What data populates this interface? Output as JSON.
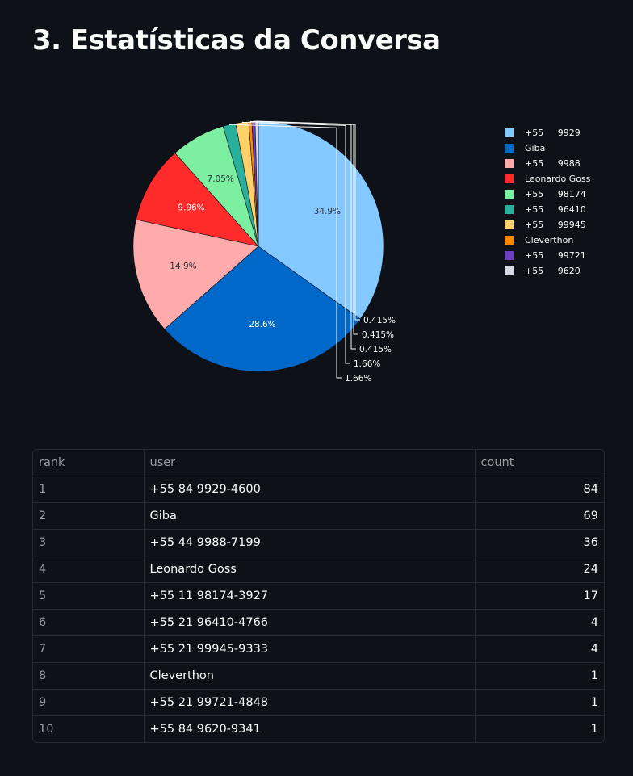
{
  "page": {
    "title": "3. Estatísticas da Conversa"
  },
  "chart_data": {
    "type": "pie",
    "title": "",
    "labels": [
      "+55     9929",
      "Giba",
      "+55     9988",
      "Leonardo Goss",
      "+55     98174",
      "+55     96410",
      "+55     99945",
      "Cleverthon",
      "+55     99721",
      "+55     9620"
    ],
    "values": [
      84,
      69,
      36,
      24,
      17,
      4,
      4,
      1,
      1,
      1
    ],
    "percent_labels": [
      "34.9%",
      "28.6%",
      "14.9%",
      "9.96%",
      "7.05%",
      "1.66%",
      "1.66%",
      "0.415%",
      "0.415%",
      "0.415%"
    ],
    "colors": [
      "#83c9ff",
      "#0068c9",
      "#ffabab",
      "#ff2b2b",
      "#7defa1",
      "#29b09d",
      "#ffd16a",
      "#ff8700",
      "#6d3fc0",
      "#d5dae5"
    ],
    "legend_position": "right"
  },
  "table": {
    "columns": [
      "rank",
      "user",
      "count"
    ],
    "rows": [
      [
        "1",
        "+55 84 9929-4600",
        "84"
      ],
      [
        "2",
        "Giba",
        "69"
      ],
      [
        "3",
        "+55 44 9988-7199",
        "36"
      ],
      [
        "4",
        "Leonardo Goss",
        "24"
      ],
      [
        "5",
        "+55 11 98174-3927",
        "17"
      ],
      [
        "6",
        "+55 21 96410-4766",
        "4"
      ],
      [
        "7",
        "+55 21 99945-9333",
        "4"
      ],
      [
        "8",
        "Cleverthon",
        "1"
      ],
      [
        "9",
        "+55 21 99721-4848",
        "1"
      ],
      [
        "10",
        "+55 84 9620-9341",
        "1"
      ]
    ]
  }
}
